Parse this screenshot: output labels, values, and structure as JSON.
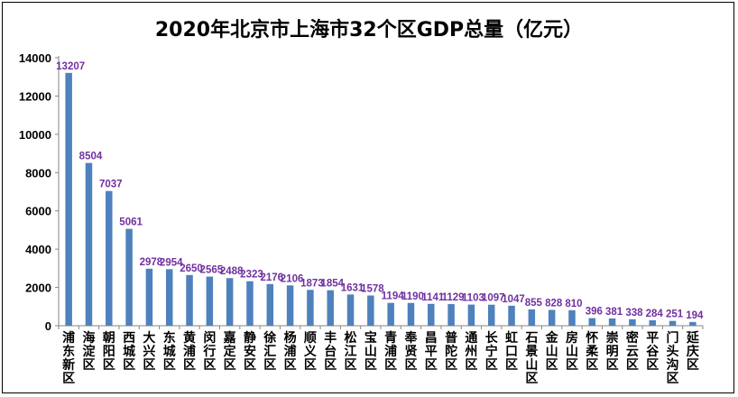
{
  "chart_data": {
    "type": "bar",
    "title": "2020年北京市上海市32个区GDP总量（亿元）",
    "xlabel": "",
    "ylabel": "",
    "ylim": [
      0,
      14000
    ],
    "yticks": [
      0,
      2000,
      4000,
      6000,
      8000,
      10000,
      12000,
      14000
    ],
    "grid": false,
    "legend": "none",
    "bar_color": "#4f81bd",
    "label_color": "#7030a0",
    "categories": [
      "浦东新区",
      "海淀区",
      "朝阳区",
      "西城区",
      "大兴区",
      "东城区",
      "黄浦区",
      "闵行区",
      "嘉定区",
      "静安区",
      "徐汇区",
      "杨浦区",
      "顺义区",
      "丰台区",
      "松江区",
      "宝山区",
      "青浦区",
      "奉贤区",
      "昌平区",
      "普陀区",
      "通州区",
      "长宁区",
      "虹口区",
      "石景山区",
      "金山区",
      "房山区",
      "怀柔区",
      "崇明区",
      "密云区",
      "平谷区",
      "门头沟区",
      "延庆区"
    ],
    "values": [
      13207,
      8504,
      7037,
      5061,
      2978,
      2954,
      2650,
      2565,
      2488,
      2323,
      2176,
      2106,
      1873,
      1854,
      1631,
      1578,
      1194,
      1190,
      1141,
      1129,
      1103,
      1097,
      1047,
      855,
      828,
      810,
      396,
      381,
      338,
      284,
      251,
      194
    ]
  }
}
